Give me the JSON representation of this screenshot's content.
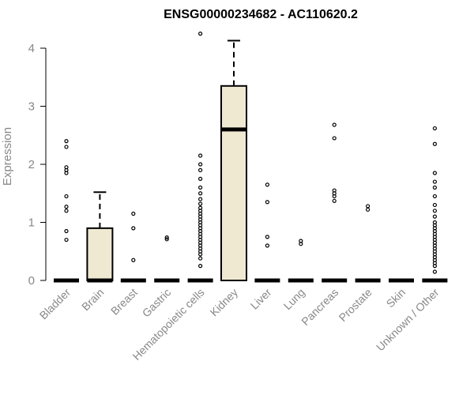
{
  "chart_data": {
    "type": "box",
    "title": "ENSG00000234682 - AC110620.2",
    "ylabel": "Expression",
    "xlabel": "",
    "ylim": [
      0,
      4.3
    ],
    "yticks": [
      0,
      1,
      2,
      3,
      4
    ],
    "grid": false,
    "box_fill": "#efe9d2",
    "categories": [
      "Bladder",
      "Brain",
      "Breast",
      "Gastric",
      "Hematopoietic cells",
      "Kidney",
      "Liver",
      "Lung",
      "Pancreas",
      "Prostate",
      "Skin",
      "Unknown / Other"
    ],
    "boxes": [
      {
        "name": "Bladder",
        "q1": 0,
        "median": 0,
        "q3": 0,
        "whisker_low": 0,
        "whisker_high": 0,
        "outliers": [
          0.7,
          0.85,
          1.2,
          1.27,
          1.45,
          1.85,
          1.9,
          1.95,
          2.3,
          2.4
        ]
      },
      {
        "name": "Brain",
        "q1": 0,
        "median": 0,
        "q3": 0.9,
        "whisker_low": 0,
        "whisker_high": 1.52,
        "outliers": []
      },
      {
        "name": "Breast",
        "q1": 0,
        "median": 0,
        "q3": 0,
        "whisker_low": 0,
        "whisker_high": 0,
        "outliers": [
          0.35,
          0.9,
          1.15
        ]
      },
      {
        "name": "Gastric",
        "q1": 0,
        "median": 0,
        "q3": 0,
        "whisker_low": 0,
        "whisker_high": 0,
        "outliers": [
          0.71,
          0.74
        ]
      },
      {
        "name": "Hematopoietic cells",
        "q1": 0,
        "median": 0,
        "q3": 0,
        "whisker_low": 0,
        "whisker_high": 0,
        "outliers": [
          0.25,
          0.38,
          0.45,
          0.5,
          0.55,
          0.6,
          0.65,
          0.7,
          0.75,
          0.8,
          0.85,
          0.9,
          0.95,
          1.0,
          1.05,
          1.1,
          1.15,
          1.2,
          1.25,
          1.32,
          1.4,
          1.5,
          1.6,
          1.75,
          1.9,
          2.0,
          2.15,
          4.25
        ]
      },
      {
        "name": "Kidney",
        "q1": 0,
        "median": 2.6,
        "q3": 3.35,
        "whisker_low": 0,
        "whisker_high": 4.13,
        "outliers": []
      },
      {
        "name": "Liver",
        "q1": 0,
        "median": 0,
        "q3": 0,
        "whisker_low": 0,
        "whisker_high": 0,
        "outliers": [
          0.6,
          0.75,
          1.35,
          1.65
        ]
      },
      {
        "name": "Lung",
        "q1": 0,
        "median": 0,
        "q3": 0,
        "whisker_low": 0,
        "whisker_high": 0,
        "outliers": [
          0.63,
          0.68
        ]
      },
      {
        "name": "Pancreas",
        "q1": 0,
        "median": 0,
        "q3": 0,
        "whisker_low": 0,
        "whisker_high": 0,
        "outliers": [
          1.37,
          1.45,
          1.5,
          1.55,
          2.45,
          2.68
        ]
      },
      {
        "name": "Prostate",
        "q1": 0,
        "median": 0,
        "q3": 0,
        "whisker_low": 0,
        "whisker_high": 0,
        "outliers": [
          1.22,
          1.28
        ]
      },
      {
        "name": "Skin",
        "q1": 0,
        "median": 0,
        "q3": 0,
        "whisker_low": 0,
        "whisker_high": 0,
        "outliers": []
      },
      {
        "name": "Unknown / Other",
        "q1": 0,
        "median": 0,
        "q3": 0,
        "whisker_low": 0,
        "whisker_high": 0,
        "outliers": [
          0.15,
          0.25,
          0.3,
          0.35,
          0.4,
          0.45,
          0.5,
          0.55,
          0.6,
          0.65,
          0.7,
          0.75,
          0.8,
          0.85,
          0.9,
          0.95,
          1.0,
          1.1,
          1.2,
          1.3,
          1.45,
          1.6,
          1.7,
          1.85,
          2.35,
          2.62
        ]
      }
    ]
  }
}
